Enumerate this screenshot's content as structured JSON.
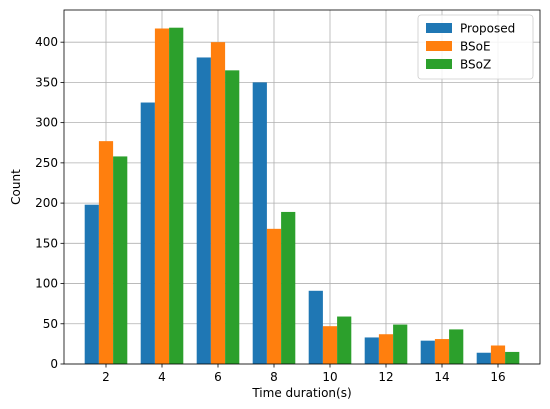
{
  "chart_data": {
    "type": "bar",
    "xlabel": "Time duration(s)",
    "ylabel": "Count",
    "ylim": [
      0,
      440
    ],
    "yticks": [
      0,
      50,
      100,
      150,
      200,
      250,
      300,
      350,
      400
    ],
    "categories": [
      "2",
      "4",
      "6",
      "8",
      "10",
      "12",
      "14",
      "16"
    ],
    "grid": true,
    "legend_position": "top-right",
    "series": [
      {
        "name": "Proposed",
        "color": "#1f77b4",
        "values": [
          198,
          325,
          381,
          350,
          91,
          33,
          29,
          14
        ]
      },
      {
        "name": "BSoE",
        "color": "#ff7f0e",
        "values": [
          277,
          417,
          400,
          168,
          47,
          37,
          31,
          23
        ]
      },
      {
        "name": "BSoZ",
        "color": "#2ca02c",
        "values": [
          258,
          418,
          365,
          189,
          59,
          49,
          43,
          15
        ]
      }
    ]
  }
}
